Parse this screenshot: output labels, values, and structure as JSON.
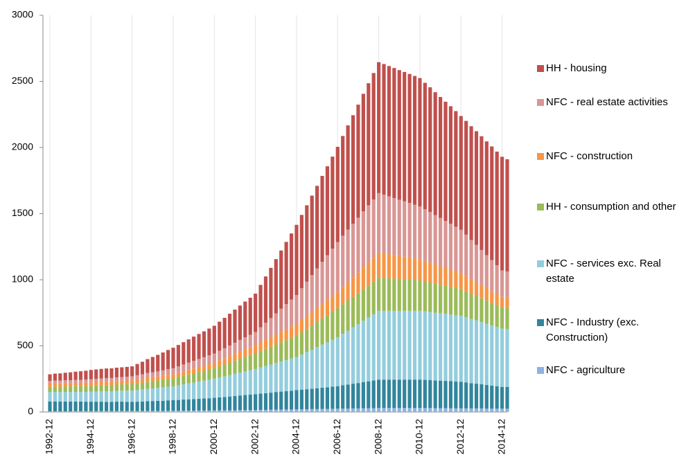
{
  "chart_data": {
    "type": "stacked_bar",
    "categories": [
      "1992-12",
      null,
      null,
      null,
      null,
      null,
      null,
      null,
      "1994-12",
      null,
      null,
      null,
      null,
      null,
      null,
      null,
      "1996-12",
      null,
      null,
      null,
      null,
      null,
      null,
      null,
      "1998-12",
      null,
      null,
      null,
      null,
      null,
      null,
      null,
      "2000-12",
      null,
      null,
      null,
      null,
      null,
      null,
      null,
      "2002-12",
      null,
      null,
      null,
      null,
      null,
      null,
      null,
      "2004-12",
      null,
      null,
      null,
      null,
      null,
      null,
      null,
      "2006-12",
      null,
      null,
      null,
      null,
      null,
      null,
      null,
      "2008-12",
      null,
      null,
      null,
      null,
      null,
      null,
      null,
      "2010-12",
      null,
      null,
      null,
      null,
      null,
      null,
      null,
      "2012-12",
      null,
      null,
      null,
      null,
      null,
      null,
      null,
      "2014-12",
      null
    ],
    "ylim": [
      0,
      3000
    ],
    "yticks": [
      0,
      500,
      1000,
      1500,
      2000,
      2500,
      3000
    ],
    "grid": true,
    "series": [
      {
        "name": "NFC - agriculture",
        "color": "#8db3e2",
        "values": [
          5,
          5,
          5,
          5,
          5,
          6,
          6,
          6,
          6,
          6,
          6,
          6,
          6,
          7,
          7,
          7,
          7,
          7,
          7,
          8,
          8,
          8,
          8,
          9,
          9,
          9,
          10,
          10,
          10,
          11,
          11,
          11,
          12,
          12,
          12,
          13,
          13,
          14,
          14,
          14,
          15,
          16,
          16,
          17,
          18,
          18,
          19,
          19,
          20,
          21,
          21,
          22,
          22,
          23,
          23,
          24,
          25,
          26,
          26,
          27,
          27,
          28,
          28,
          29,
          30,
          30,
          30,
          30,
          30,
          30,
          30,
          30,
          30,
          30,
          30,
          29,
          29,
          29,
          29,
          28,
          28,
          28,
          27,
          27,
          27,
          26,
          26,
          25,
          25,
          25
        ]
      },
      {
        "name": "NFC - Industry (exc. Construction)",
        "color": "#31859c",
        "values": [
          75,
          75,
          74,
          74,
          74,
          73,
          73,
          72,
          72,
          72,
          72,
          71,
          71,
          71,
          71,
          70,
          70,
          71,
          72,
          74,
          75,
          76,
          77,
          79,
          80,
          82,
          84,
          86,
          88,
          89,
          91,
          93,
          95,
          98,
          101,
          104,
          108,
          111,
          114,
          117,
          120,
          123,
          126,
          129,
          133,
          136,
          139,
          142,
          145,
          148,
          151,
          154,
          158,
          161,
          164,
          167,
          170,
          176,
          181,
          187,
          192,
          198,
          204,
          209,
          215,
          215,
          215,
          215,
          215,
          215,
          215,
          215,
          215,
          213,
          211,
          209,
          208,
          206,
          204,
          202,
          200,
          196,
          191,
          187,
          183,
          178,
          174,
          170,
          165,
          165
        ]
      },
      {
        "name": "NFC - services exc. Real estate",
        "color": "#93cddd",
        "values": [
          70,
          71,
          71,
          72,
          72,
          73,
          73,
          74,
          75,
          76,
          78,
          79,
          80,
          81,
          83,
          84,
          85,
          88,
          90,
          93,
          95,
          98,
          100,
          103,
          105,
          110,
          115,
          120,
          125,
          130,
          135,
          140,
          145,
          151,
          156,
          162,
          168,
          173,
          179,
          184,
          190,
          198,
          205,
          213,
          220,
          228,
          235,
          243,
          250,
          265,
          280,
          295,
          310,
          325,
          340,
          355,
          370,
          389,
          408,
          426,
          445,
          464,
          482,
          501,
          520,
          520,
          520,
          520,
          520,
          520,
          520,
          520,
          520,
          518,
          515,
          513,
          510,
          508,
          505,
          503,
          500,
          493,
          485,
          478,
          470,
          463,
          455,
          448,
          440,
          438
        ]
      },
      {
        "name": "HH - consumption and other",
        "color": "#9bbb59",
        "values": [
          40,
          41,
          41,
          42,
          42,
          43,
          43,
          44,
          45,
          46,
          46,
          47,
          47,
          48,
          48,
          49,
          50,
          51,
          53,
          54,
          55,
          56,
          58,
          59,
          60,
          63,
          65,
          68,
          70,
          73,
          75,
          78,
          80,
          85,
          90,
          95,
          100,
          105,
          110,
          115,
          120,
          125,
          130,
          135,
          140,
          145,
          150,
          155,
          160,
          168,
          175,
          183,
          190,
          198,
          205,
          213,
          220,
          224,
          228,
          231,
          235,
          239,
          243,
          246,
          250,
          248,
          245,
          243,
          240,
          238,
          235,
          233,
          230,
          226,
          223,
          219,
          215,
          211,
          208,
          204,
          200,
          195,
          190,
          185,
          180,
          175,
          170,
          165,
          160,
          158
        ]
      },
      {
        "name": "NFC - construction",
        "color": "#f79646",
        "values": [
          25,
          25,
          25,
          25,
          25,
          25,
          25,
          25,
          25,
          25,
          26,
          26,
          26,
          27,
          27,
          28,
          28,
          29,
          29,
          30,
          30,
          30,
          31,
          31,
          32,
          33,
          34,
          35,
          36,
          37,
          38,
          39,
          40,
          43,
          45,
          48,
          50,
          53,
          55,
          58,
          60,
          64,
          68,
          71,
          75,
          79,
          83,
          86,
          90,
          94,
          98,
          101,
          105,
          109,
          113,
          116,
          120,
          129,
          138,
          146,
          155,
          164,
          173,
          181,
          190,
          186,
          183,
          179,
          175,
          171,
          168,
          164,
          160,
          155,
          150,
          145,
          140,
          135,
          130,
          125,
          120,
          115,
          110,
          105,
          100,
          95,
          90,
          85,
          80,
          79
        ]
      },
      {
        "name": "NFC - real estate activities",
        "color": "#d99694",
        "values": [
          20,
          21,
          21,
          22,
          22,
          23,
          23,
          24,
          25,
          26,
          26,
          27,
          27,
          28,
          28,
          29,
          30,
          32,
          34,
          36,
          38,
          39,
          41,
          43,
          45,
          48,
          51,
          54,
          58,
          61,
          64,
          67,
          70,
          74,
          78,
          81,
          85,
          89,
          93,
          96,
          100,
          115,
          130,
          145,
          160,
          175,
          190,
          205,
          220,
          240,
          260,
          280,
          300,
          320,
          340,
          360,
          380,
          389,
          398,
          406,
          415,
          424,
          433,
          441,
          450,
          444,
          438,
          431,
          425,
          419,
          413,
          406,
          400,
          391,
          383,
          374,
          365,
          356,
          348,
          339,
          330,
          314,
          298,
          281,
          265,
          249,
          233,
          216,
          200,
          198
        ]
      },
      {
        "name": "HH - housing",
        "color": "#c0504d",
        "values": [
          50,
          52,
          55,
          57,
          60,
          62,
          65,
          67,
          70,
          71,
          72,
          73,
          73,
          73,
          74,
          74,
          75,
          85,
          95,
          105,
          115,
          125,
          135,
          145,
          155,
          162,
          169,
          176,
          183,
          189,
          196,
          203,
          210,
          220,
          230,
          240,
          250,
          260,
          270,
          280,
          290,
          320,
          350,
          380,
          410,
          440,
          470,
          500,
          530,
          554,
          578,
          601,
          625,
          649,
          673,
          696,
          720,
          754,
          788,
          821,
          855,
          889,
          923,
          956,
          990,
          988,
          985,
          983,
          980,
          978,
          975,
          973,
          970,
          956,
          943,
          929,
          915,
          901,
          888,
          874,
          860,
          860,
          860,
          860,
          860,
          860,
          860,
          860,
          860,
          848
        ]
      }
    ]
  }
}
